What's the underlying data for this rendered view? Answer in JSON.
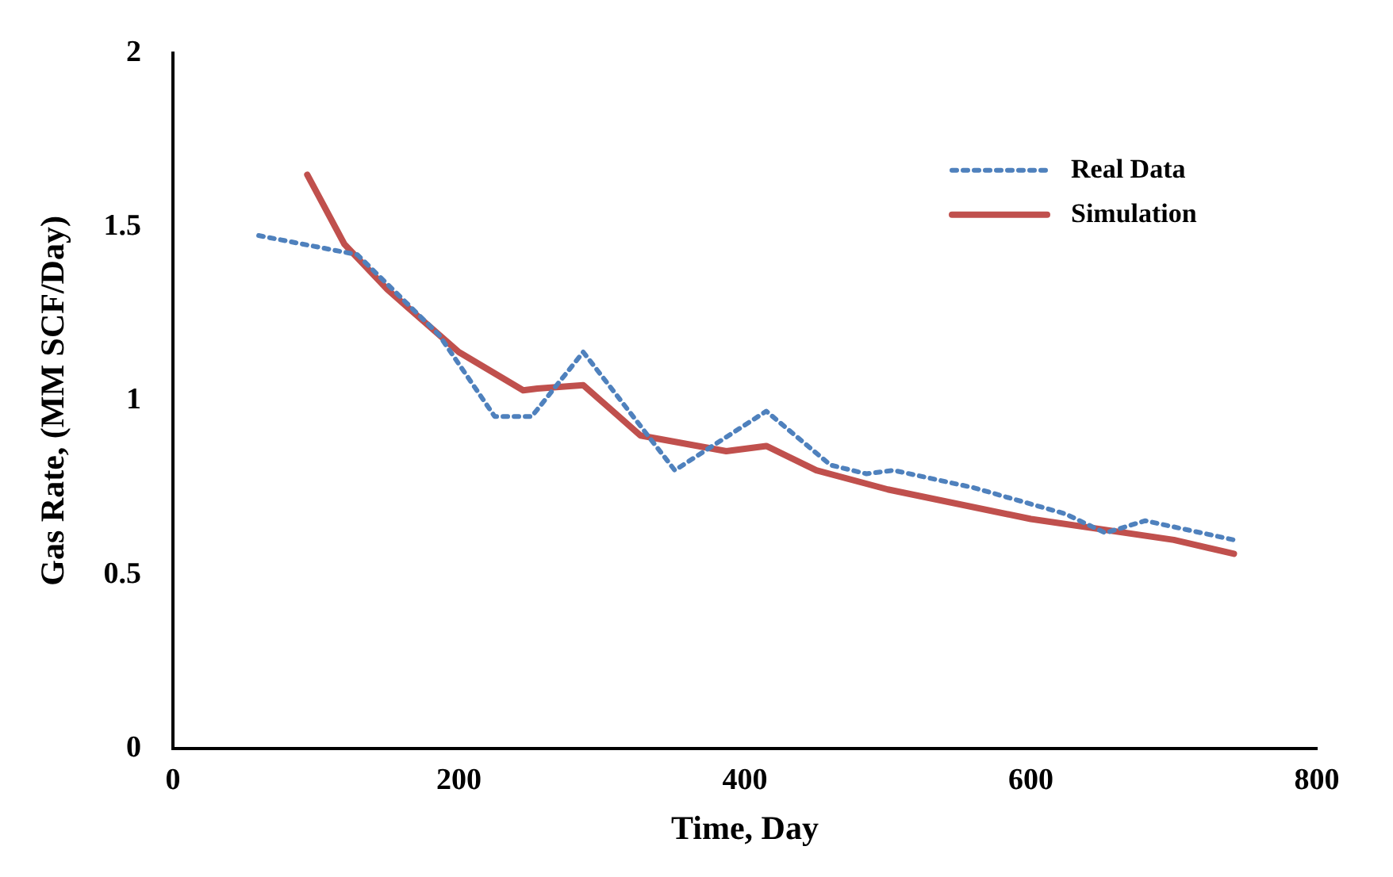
{
  "chart_data": {
    "type": "line",
    "xlabel": "Time, Day",
    "ylabel": "Gas Rate, (MM SCF/Day)",
    "xlim": [
      0,
      800
    ],
    "xticks": [
      0,
      200,
      400,
      600,
      800
    ],
    "ylim": [
      0,
      2
    ],
    "yticks": [
      0,
      0.5,
      1,
      1.5,
      2
    ],
    "grid": false,
    "legend": "top right",
    "marker": "none",
    "series": [
      {
        "name": "Real Data",
        "color": "#4f81bd",
        "line_style": "dotted",
        "x": [
          60,
          129,
          186,
          225,
          251,
          287,
          351,
          415,
          460,
          485,
          504,
          560,
          624,
          652,
          680,
          742
        ],
        "values": [
          1.475,
          1.42,
          1.19,
          0.955,
          0.955,
          1.14,
          0.8,
          0.97,
          0.815,
          0.79,
          0.8,
          0.75,
          0.675,
          0.62,
          0.655,
          0.6
        ]
      },
      {
        "name": "Simulation",
        "color": "#c0504d",
        "line_style": "solid",
        "x": [
          94,
          120,
          150,
          200,
          245,
          255,
          287,
          327,
          387,
          415,
          450,
          500,
          600,
          700,
          742
        ],
        "values": [
          1.65,
          1.45,
          1.32,
          1.14,
          1.03,
          1.035,
          1.045,
          0.9,
          0.855,
          0.87,
          0.8,
          0.745,
          0.66,
          0.6,
          0.56
        ]
      }
    ]
  }
}
